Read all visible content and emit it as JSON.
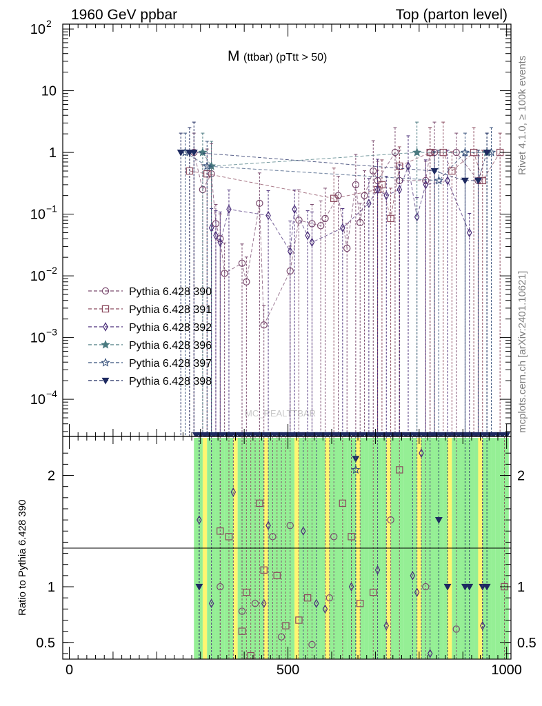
{
  "header": {
    "left": "1960 GeV ppbar",
    "right": "Top (parton level)"
  },
  "side_labels": {
    "rivet": "Rivet 4.1.0, ≥ 100k events",
    "mcplots": "mcplots.cern.ch [arXiv:2401.10621]"
  },
  "watermark": "MC_REALTTBAR",
  "chart_data": {
    "type": "line",
    "title_main": "M",
    "title_sub": "(ttbar) (pTtt > 50)",
    "xlabel": "",
    "ylabel_ratio": "Ratio to Pythia 6.428 390",
    "xlim": [
      -15,
      1010
    ],
    "ylim_main": [
      2.5e-05,
      120
    ],
    "ylim_ratio": [
      0.35,
      2.35
    ],
    "main_y_ticks": [
      {
        "value": 100,
        "label": "10",
        "sup": "2"
      },
      {
        "value": 10,
        "label": "10",
        "sup": ""
      },
      {
        "value": 1,
        "label": "1",
        "sup": ""
      },
      {
        "value": 0.1,
        "label": "10",
        "sup": "−1"
      },
      {
        "value": 0.01,
        "label": "10",
        "sup": "−2"
      },
      {
        "value": 0.001,
        "label": "10",
        "sup": "−3"
      },
      {
        "value": 0.0001,
        "label": "10",
        "sup": "−4"
      }
    ],
    "ratio_y_ticks": [
      {
        "value": 2,
        "label": "2"
      },
      {
        "value": 1,
        "label": "1"
      },
      {
        "value": 0.5,
        "label": "0.5"
      }
    ],
    "x_ticks": [
      {
        "value": 0,
        "label": "0"
      },
      {
        "value": 500,
        "label": "500"
      },
      {
        "value": 1000,
        "label": "1000"
      }
    ],
    "series": [
      {
        "name": "Pythia 6.428 390",
        "color": "#7a4a6e",
        "marker": "circle-open",
        "x": [
          285,
          305,
          325,
          335,
          345,
          355,
          395,
          405,
          435,
          445,
          505,
          525,
          555,
          575,
          585,
          615,
          635,
          655,
          665,
          675,
          695,
          705,
          745,
          755,
          815,
          825,
          835,
          885,
          935
        ],
        "y": [
          1,
          0.25,
          0.45,
          0.07,
          0.04,
          0.011,
          0.016,
          0.008,
          0.15,
          0.0016,
          0.012,
          0.08,
          0.07,
          0.065,
          0.085,
          0.2,
          0.028,
          0.3,
          0.073,
          0.2,
          0.5,
          0.35,
          1,
          0.35,
          0.35,
          1,
          1,
          1,
          0.35
        ]
      },
      {
        "name": "Pythia 6.428 391",
        "color": "#8b4a5e",
        "marker": "square-open",
        "x": [
          275,
          315,
          605,
          705,
          715,
          735,
          755,
          825,
          855,
          875,
          925,
          945,
          985
        ],
        "y": [
          0.5,
          0.45,
          0.18,
          0.25,
          0.3,
          0.085,
          0.6,
          1,
          1,
          0.5,
          1,
          0.35,
          1
        ]
      },
      {
        "name": "Pythia 6.428 392",
        "color": "#4b2f7a",
        "marker": "diamond-open",
        "x": [
          325,
          335,
          345,
          365,
          455,
          505,
          515,
          545,
          555,
          625,
          685,
          705,
          725,
          755,
          775,
          795,
          815,
          865,
          915
        ],
        "y": [
          0.06,
          0.045,
          0.035,
          0.12,
          0.095,
          0.025,
          0.12,
          0.045,
          0.035,
          0.06,
          0.15,
          0.25,
          0.2,
          0.25,
          0.6,
          0.09,
          0.3,
          0.35,
          0.05
        ]
      },
      {
        "name": "Pythia 6.428 396",
        "color": "#4a7a80",
        "marker": "star-filled",
        "x": [
          305,
          325,
          795,
          955
        ],
        "y": [
          1,
          0.6,
          1,
          1
        ]
      },
      {
        "name": "Pythia 6.428 397",
        "color": "#36507a",
        "marker": "star-open",
        "x": [
          265,
          315,
          845,
          905,
          965
        ],
        "y": [
          1,
          0.6,
          0.35,
          1,
          1
        ]
      },
      {
        "name": "Pythia 6.428 398",
        "color": "#1e2a60",
        "marker": "triangle-down-filled",
        "x": [
          255,
          275,
          285,
          835,
          905,
          935,
          955
        ],
        "y": [
          1,
          1,
          1,
          0.5,
          0.35,
          0.35,
          1
        ]
      }
    ],
    "ratio_points": [
      {
        "series": 2,
        "x": 297,
        "y": 1.6
      },
      {
        "series": 5,
        "x": 297,
        "y": 1.0
      },
      {
        "series": 2,
        "x": 325,
        "y": 0.85
      },
      {
        "series": 1,
        "x": 345,
        "y": 1.5
      },
      {
        "series": 0,
        "x": 345,
        "y": 1.0
      },
      {
        "series": 1,
        "x": 365,
        "y": 1.45
      },
      {
        "series": 2,
        "x": 375,
        "y": 1.85
      },
      {
        "series": 1,
        "x": 395,
        "y": 0.6
      },
      {
        "series": 1,
        "x": 405,
        "y": 0.95
      },
      {
        "series": 0,
        "x": 395,
        "y": 0.78
      },
      {
        "series": 1,
        "x": 415,
        "y": 0.38
      },
      {
        "series": 0,
        "x": 425,
        "y": 0.85
      },
      {
        "series": 1,
        "x": 435,
        "y": 1.75
      },
      {
        "series": 2,
        "x": 445,
        "y": 0.85
      },
      {
        "series": 1,
        "x": 445,
        "y": 1.15
      },
      {
        "series": 2,
        "x": 455,
        "y": 1.55
      },
      {
        "series": 0,
        "x": 465,
        "y": 1.45
      },
      {
        "series": 1,
        "x": 475,
        "y": 1.1
      },
      {
        "series": 0,
        "x": 485,
        "y": 0.55
      },
      {
        "series": 1,
        "x": 495,
        "y": 0.65
      },
      {
        "series": 0,
        "x": 505,
        "y": 1.55
      },
      {
        "series": 1,
        "x": 525,
        "y": 0.7
      },
      {
        "series": 2,
        "x": 535,
        "y": 1.5
      },
      {
        "series": 1,
        "x": 545,
        "y": 0.9
      },
      {
        "series": 0,
        "x": 555,
        "y": 0.48
      },
      {
        "series": 2,
        "x": 565,
        "y": 0.85
      },
      {
        "series": 2,
        "x": 585,
        "y": 0.8
      },
      {
        "series": 0,
        "x": 595,
        "y": 0.9
      },
      {
        "series": 0,
        "x": 605,
        "y": 1.45
      },
      {
        "series": 1,
        "x": 625,
        "y": 1.75
      },
      {
        "series": 2,
        "x": 645,
        "y": 1.0
      },
      {
        "series": 1,
        "x": 645,
        "y": 1.45
      },
      {
        "series": 5,
        "x": 655,
        "y": 2.15
      },
      {
        "series": 4,
        "x": 655,
        "y": 2.05
      },
      {
        "series": 1,
        "x": 665,
        "y": 0.85
      },
      {
        "series": 1,
        "x": 695,
        "y": 0.95
      },
      {
        "series": 2,
        "x": 705,
        "y": 1.15
      },
      {
        "series": 2,
        "x": 725,
        "y": 0.65
      },
      {
        "series": 0,
        "x": 735,
        "y": 1.6
      },
      {
        "series": 1,
        "x": 755,
        "y": 2.05
      },
      {
        "series": 2,
        "x": 785,
        "y": 1.1
      },
      {
        "series": 2,
        "x": 795,
        "y": 0.95
      },
      {
        "series": 2,
        "x": 805,
        "y": 2.2
      },
      {
        "series": 0,
        "x": 815,
        "y": 1.0
      },
      {
        "series": 2,
        "x": 825,
        "y": 0.4
      },
      {
        "series": 5,
        "x": 845,
        "y": 1.6
      },
      {
        "series": 5,
        "x": 865,
        "y": 1.0
      },
      {
        "series": 0,
        "x": 885,
        "y": 0.62
      },
      {
        "series": 5,
        "x": 905,
        "y": 1.0
      },
      {
        "series": 5,
        "x": 915,
        "y": 1.0
      },
      {
        "series": 5,
        "x": 945,
        "y": 1.0
      },
      {
        "series": 5,
        "x": 955,
        "y": 1.0
      },
      {
        "series": 2,
        "x": 945,
        "y": 0.65
      },
      {
        "series": 1,
        "x": 995,
        "y": 1.0
      }
    ]
  }
}
